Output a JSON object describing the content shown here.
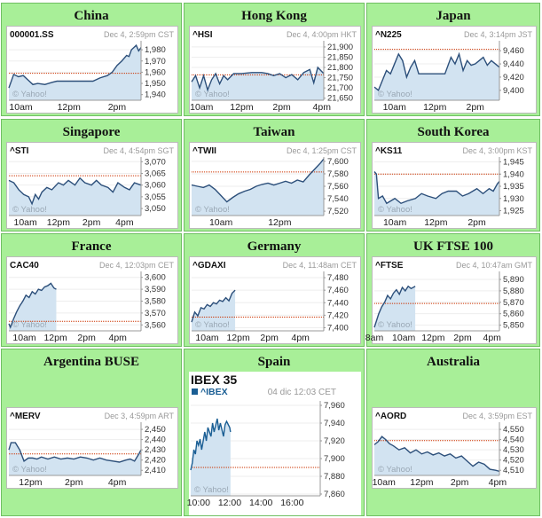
{
  "panels": [
    {
      "region": "China",
      "symbol": "000001.SS",
      "date": "Dec 4, 2:59pm CST"
    },
    {
      "region": "Hong Kong",
      "symbol": "^HSI",
      "date": "Dec 4, 4:00pm HKT"
    },
    {
      "region": "Japan",
      "symbol": "^N225",
      "date": "Dec 4, 3:14pm JST"
    },
    {
      "region": "Singapore",
      "symbol": "^STI",
      "date": "Dec 4, 4:54pm SGT"
    },
    {
      "region": "Taiwan",
      "symbol": "^TWII",
      "date": "Dec 4, 1:25pm CST"
    },
    {
      "region": "South Korea",
      "symbol": "^KS11",
      "date": "Dec 4, 3:00pm KST"
    },
    {
      "region": "France",
      "symbol": "CAC40",
      "date": "Dec 4, 12:03pm CET"
    },
    {
      "region": "Germany",
      "symbol": "^GDAXI",
      "date": "Dec 4, 11:48am CET"
    },
    {
      "region": "UK FTSE 100",
      "symbol": "^FTSE",
      "date": "Dec 4, 10:47am GMT"
    },
    {
      "region": "Argentina BUSE",
      "symbol": "^MERV",
      "date": "Dec 3, 4:59pm ART"
    },
    {
      "region": "Spain",
      "symbol": "^IBEX",
      "date": "04 dic 12:03 CET",
      "chart_title": "IBEX 35"
    },
    {
      "region": "Australia",
      "symbol": "^AORD",
      "date": "Dec 4, 3:59pm EST"
    }
  ],
  "watermark": "© Yahoo!",
  "colors": {
    "panel_bg": "#a8ef98",
    "line": "#2c4f7a",
    "fill": "#d2e3f1",
    "ref_line": "#cc3300",
    "spain_line": "#1a5e94"
  },
  "chart_data": [
    {
      "type": "area",
      "region": "China",
      "symbol": "000001.SS",
      "ylim": [
        1935,
        1988
      ],
      "yticks": [
        1980,
        1970,
        1960,
        1950,
        1940
      ],
      "xrange": [
        9.5,
        15
      ],
      "xticks": [
        [
          10,
          "10am"
        ],
        [
          12,
          "12pm"
        ],
        [
          14,
          "2pm"
        ]
      ],
      "prev_close": 1959,
      "x": [
        9.5,
        9.7,
        9.9,
        10.1,
        10.3,
        10.5,
        10.7,
        11,
        11.3,
        11.5,
        13,
        13.3,
        13.6,
        13.8,
        14,
        14.2,
        14.4,
        14.5,
        14.6,
        14.7,
        14.8,
        14.9,
        15
      ],
      "y": [
        1946,
        1958,
        1956,
        1957,
        1953,
        1949,
        1950,
        1949,
        1951,
        1952,
        1952,
        1955,
        1957,
        1960,
        1966,
        1970,
        1975,
        1974,
        1980,
        1982,
        1984,
        1979,
        1982
      ]
    },
    {
      "type": "area",
      "region": "Hong Kong",
      "symbol": "^HSI",
      "ylim": [
        21640,
        21930
      ],
      "yticks": [
        21900,
        21850,
        21800,
        21750,
        21700,
        21650
      ],
      "xrange": [
        9.5,
        16.1
      ],
      "xticks": [
        [
          10,
          "10am"
        ],
        [
          12,
          "12pm"
        ],
        [
          14,
          "2pm"
        ],
        [
          16,
          "4pm"
        ]
      ],
      "prev_close": 21764,
      "x": [
        9.5,
        9.7,
        9.9,
        10.1,
        10.3,
        10.5,
        10.7,
        10.9,
        11.1,
        11.3,
        11.6,
        12,
        12.5,
        13,
        13.3,
        13.6,
        13.9,
        14.2,
        14.5,
        14.8,
        15.1,
        15.4,
        15.6,
        15.8,
        16,
        16.1
      ],
      "y": [
        21730,
        21760,
        21700,
        21760,
        21690,
        21740,
        21770,
        21720,
        21760,
        21740,
        21770,
        21770,
        21775,
        21775,
        21770,
        21760,
        21770,
        21750,
        21765,
        21740,
        21775,
        21790,
        21725,
        21800,
        21780,
        21770
      ]
    },
    {
      "type": "area",
      "region": "Japan",
      "symbol": "^N225",
      "ylim": [
        9385,
        9475
      ],
      "yticks": [
        9460,
        9440,
        9420,
        9400
      ],
      "xrange": [
        9,
        15.2
      ],
      "xticks": [
        [
          10,
          "10am"
        ],
        [
          12,
          "12pm"
        ],
        [
          14,
          "2pm"
        ]
      ],
      "prev_close": 9462,
      "x": [
        9,
        9.2,
        9.4,
        9.6,
        9.8,
        10,
        10.2,
        10.4,
        10.6,
        10.8,
        11,
        11.2,
        11.5,
        12.5,
        12.8,
        13,
        13.2,
        13.4,
        13.6,
        13.8,
        14,
        14.2,
        14.4,
        14.6,
        14.8,
        15,
        15.2
      ],
      "y": [
        9405,
        9400,
        9415,
        9430,
        9425,
        9440,
        9455,
        9445,
        9420,
        9435,
        9445,
        9425,
        9425,
        9425,
        9450,
        9440,
        9455,
        9430,
        9445,
        9438,
        9440,
        9445,
        9450,
        9438,
        9445,
        9440,
        9435
      ]
    },
    {
      "type": "area",
      "region": "Singapore",
      "symbol": "^STI",
      "ylim": [
        3047,
        3072
      ],
      "yticks": [
        3070,
        3065,
        3060,
        3055,
        3050
      ],
      "xrange": [
        9,
        17
      ],
      "xticks": [
        [
          10,
          "10am"
        ],
        [
          12,
          "12pm"
        ],
        [
          14,
          "2pm"
        ],
        [
          16,
          "4pm"
        ]
      ],
      "prev_close": 3064,
      "x": [
        9,
        9.3,
        9.6,
        9.9,
        10.2,
        10.4,
        10.6,
        10.8,
        11,
        11.3,
        11.6,
        12,
        12.3,
        12.6,
        13,
        13.3,
        13.6,
        14,
        14.3,
        14.6,
        15,
        15.3,
        15.6,
        16,
        16.3,
        16.6,
        17
      ],
      "y": [
        3062,
        3061,
        3058,
        3056,
        3055,
        3052,
        3056,
        3054,
        3057,
        3059,
        3058,
        3061,
        3060,
        3062,
        3060,
        3063,
        3061,
        3060,
        3062,
        3060,
        3059,
        3057,
        3061,
        3059,
        3058,
        3061,
        3060
      ]
    },
    {
      "type": "area",
      "region": "Taiwan",
      "symbol": "^TWII",
      "ylim": [
        7513,
        7607
      ],
      "yticks": [
        7600,
        7580,
        7560,
        7540,
        7520
      ],
      "xrange": [
        9,
        13.5
      ],
      "xticks": [
        [
          10,
          "10am"
        ],
        [
          12,
          "12pm"
        ]
      ],
      "prev_close": 7583,
      "x": [
        9,
        9.2,
        9.4,
        9.6,
        9.8,
        10,
        10.2,
        10.4,
        10.6,
        10.8,
        11,
        11.2,
        11.4,
        11.6,
        11.8,
        12,
        12.2,
        12.4,
        12.6,
        12.8,
        13,
        13.2,
        13.4,
        13.5
      ],
      "y": [
        7562,
        7560,
        7558,
        7562,
        7555,
        7545,
        7535,
        7542,
        7548,
        7552,
        7555,
        7560,
        7563,
        7565,
        7562,
        7565,
        7568,
        7565,
        7570,
        7567,
        7578,
        7588,
        7598,
        7604
      ]
    },
    {
      "type": "area",
      "region": "South Korea",
      "symbol": "^KS11",
      "ylim": [
        1923,
        1947
      ],
      "yticks": [
        1945,
        1940,
        1935,
        1930,
        1925
      ],
      "xrange": [
        9,
        15.1
      ],
      "xticks": [
        [
          10,
          "10am"
        ],
        [
          12,
          "12pm"
        ],
        [
          14,
          "2pm"
        ]
      ],
      "prev_close": 1940,
      "x": [
        9,
        9.1,
        9.2,
        9.4,
        9.6,
        9.8,
        10,
        10.3,
        10.6,
        11,
        11.3,
        11.6,
        12,
        12.3,
        12.6,
        13,
        13.3,
        13.6,
        14,
        14.3,
        14.6,
        14.8,
        15,
        15.1
      ],
      "y": [
        1941,
        1940,
        1930,
        1931,
        1928,
        1929,
        1930,
        1928,
        1929,
        1930,
        1932,
        1931,
        1930,
        1932,
        1933,
        1933,
        1931,
        1932,
        1934,
        1932,
        1934,
        1933,
        1936,
        1937
      ]
    },
    {
      "type": "area",
      "region": "France",
      "symbol": "CAC40",
      "ylim": [
        3555,
        3605
      ],
      "yticks": [
        3600,
        3590,
        3580,
        3570,
        3560
      ],
      "xrange": [
        9,
        17.5
      ],
      "xticks": [
        [
          10,
          "10am"
        ],
        [
          12,
          "12pm"
        ],
        [
          14,
          "2pm"
        ],
        [
          16,
          "4pm"
        ]
      ],
      "prev_close": 3563,
      "x": [
        9,
        9.1,
        9.3,
        9.5,
        9.7,
        9.9,
        10.1,
        10.3,
        10.5,
        10.7,
        10.9,
        11.1,
        11.3,
        11.5,
        11.7,
        11.9,
        12.05
      ],
      "y": [
        3561,
        3558,
        3565,
        3571,
        3576,
        3580,
        3585,
        3583,
        3588,
        3586,
        3590,
        3589,
        3592,
        3593,
        3595,
        3591,
        3590
      ]
    },
    {
      "type": "area",
      "region": "Germany",
      "symbol": "^GDAXI",
      "ylim": [
        7395,
        7490
      ],
      "yticks": [
        7480,
        7460,
        7440,
        7420,
        7400
      ],
      "xrange": [
        9,
        17.5
      ],
      "xticks": [
        [
          10,
          "10am"
        ],
        [
          12,
          "12pm"
        ],
        [
          14,
          "2pm"
        ],
        [
          16,
          "4pm"
        ]
      ],
      "prev_close": 7417,
      "x": [
        9,
        9.2,
        9.4,
        9.6,
        9.8,
        10,
        10.2,
        10.4,
        10.6,
        10.8,
        11,
        11.2,
        11.4,
        11.6,
        11.8
      ],
      "y": [
        7409,
        7425,
        7419,
        7432,
        7430,
        7437,
        7434,
        7440,
        7438,
        7444,
        7442,
        7448,
        7443,
        7455,
        7460
      ]
    },
    {
      "type": "area",
      "region": "UK FTSE 100",
      "symbol": "^FTSE",
      "ylim": [
        5845,
        5897
      ],
      "yticks": [
        5890,
        5880,
        5870,
        5860,
        5850
      ],
      "xrange": [
        8,
        16.5
      ],
      "xticks": [
        [
          8,
          "8am"
        ],
        [
          10,
          "10am"
        ],
        [
          12,
          "12pm"
        ],
        [
          14,
          "2pm"
        ],
        [
          16,
          "4pm"
        ]
      ],
      "prev_close": 5869,
      "x": [
        8,
        8.1,
        8.3,
        8.5,
        8.7,
        8.9,
        9.1,
        9.3,
        9.5,
        9.7,
        9.9,
        10.1,
        10.3,
        10.5,
        10.78
      ],
      "y": [
        5848,
        5852,
        5860,
        5866,
        5870,
        5876,
        5873,
        5878,
        5881,
        5877,
        5883,
        5880,
        5884,
        5882,
        5884
      ]
    },
    {
      "type": "area",
      "region": "Argentina BUSE",
      "symbol": "^MERV",
      "ylim": [
        2405,
        2457
      ],
      "yticks": [
        2450,
        2440,
        2430,
        2420,
        2410
      ],
      "xrange": [
        11,
        17.1
      ],
      "xticks": [
        [
          12,
          "12pm"
        ],
        [
          14,
          "2pm"
        ],
        [
          16,
          "4pm"
        ]
      ],
      "prev_close": 2426,
      "x": [
        11,
        11.1,
        11.3,
        11.5,
        11.7,
        11.9,
        12.1,
        12.3,
        12.5,
        12.8,
        13.1,
        13.4,
        13.7,
        14,
        14.3,
        14.6,
        14.9,
        15.2,
        15.5,
        15.8,
        16.1,
        16.4,
        16.6,
        16.8,
        17,
        17.1
      ],
      "y": [
        2430,
        2437,
        2437,
        2430,
        2419,
        2422,
        2422,
        2421,
        2423,
        2421,
        2423,
        2421,
        2422,
        2421,
        2423,
        2422,
        2420,
        2422,
        2420,
        2419,
        2418,
        2420,
        2421,
        2419,
        2426,
        2430
      ]
    },
    {
      "type": "area",
      "region": "Spain",
      "symbol": "^IBEX",
      "title": "IBEX 35",
      "ylim": [
        7858,
        7965
      ],
      "yticks": [
        7960,
        7940,
        7920,
        7900,
        7880,
        7860
      ],
      "xrange": [
        9.5,
        17.8
      ],
      "xticks": [
        [
          10,
          "10:00"
        ],
        [
          12,
          "12:00"
        ],
        [
          14,
          "14:00"
        ],
        [
          16,
          "16:00"
        ]
      ],
      "prev_close": 7890,
      "x": [
        9.5,
        9.6,
        9.7,
        9.8,
        9.9,
        10,
        10.1,
        10.2,
        10.4,
        10.5,
        10.6,
        10.8,
        10.9,
        11,
        11.2,
        11.3,
        11.4,
        11.6,
        11.7,
        11.8,
        12,
        12.05
      ],
      "y": [
        7887,
        7895,
        7910,
        7905,
        7920,
        7915,
        7922,
        7910,
        7930,
        7920,
        7935,
        7925,
        7940,
        7930,
        7945,
        7932,
        7940,
        7925,
        7938,
        7942,
        7935,
        7930
      ]
    },
    {
      "type": "area",
      "region": "Australia",
      "symbol": "^AORD",
      "ylim": [
        4505,
        4557
      ],
      "yticks": [
        4550,
        4540,
        4530,
        4520,
        4510
      ],
      "xrange": [
        9.5,
        16.1
      ],
      "xticks": [
        [
          10,
          "10am"
        ],
        [
          12,
          "12pm"
        ],
        [
          14,
          "2pm"
        ],
        [
          16,
          "4pm"
        ]
      ],
      "prev_close": 4539,
      "x": [
        9.5,
        9.7,
        9.9,
        10.1,
        10.3,
        10.5,
        10.8,
        11.1,
        11.4,
        11.7,
        12,
        12.3,
        12.6,
        12.9,
        13.2,
        13.5,
        13.8,
        14.1,
        14.4,
        14.7,
        15,
        15.3,
        15.6,
        15.9,
        16.1
      ],
      "y": [
        4535,
        4538,
        4543,
        4540,
        4536,
        4534,
        4530,
        4532,
        4527,
        4530,
        4526,
        4528,
        4525,
        4527,
        4524,
        4526,
        4522,
        4524,
        4519,
        4514,
        4518,
        4516,
        4511,
        4510,
        4509
      ]
    }
  ]
}
